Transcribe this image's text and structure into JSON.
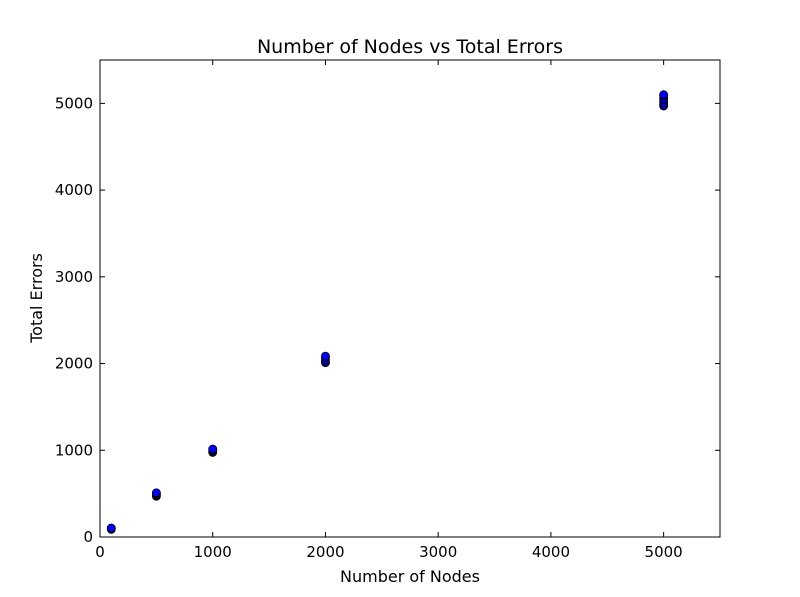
{
  "chart_data": {
    "type": "scatter",
    "title": "Number of Nodes vs Total Errors",
    "xlabel": "Number of Nodes",
    "ylabel": "Total Errors",
    "xlim": [
      0,
      5500
    ],
    "ylim": [
      0,
      5500
    ],
    "xticks": [
      0,
      1000,
      2000,
      3000,
      4000,
      5000
    ],
    "yticks": [
      0,
      1000,
      2000,
      3000,
      4000,
      5000
    ],
    "grid": false,
    "marker_color": "#0000ff",
    "marker_edge_color": "#000000",
    "points": [
      {
        "x": 100,
        "y": 88
      },
      {
        "x": 100,
        "y": 95
      },
      {
        "x": 100,
        "y": 100
      },
      {
        "x": 100,
        "y": 104
      },
      {
        "x": 500,
        "y": 470
      },
      {
        "x": 500,
        "y": 480
      },
      {
        "x": 500,
        "y": 490
      },
      {
        "x": 500,
        "y": 500
      },
      {
        "x": 500,
        "y": 510
      },
      {
        "x": 1000,
        "y": 975
      },
      {
        "x": 1000,
        "y": 985
      },
      {
        "x": 1000,
        "y": 995
      },
      {
        "x": 1000,
        "y": 1005
      },
      {
        "x": 1000,
        "y": 1015
      },
      {
        "x": 2000,
        "y": 2010
      },
      {
        "x": 2000,
        "y": 2020
      },
      {
        "x": 2000,
        "y": 2040
      },
      {
        "x": 2000,
        "y": 2070
      },
      {
        "x": 2000,
        "y": 2085
      },
      {
        "x": 5000,
        "y": 4970
      },
      {
        "x": 5000,
        "y": 4990
      },
      {
        "x": 5000,
        "y": 5010
      },
      {
        "x": 5000,
        "y": 5040
      },
      {
        "x": 5000,
        "y": 5060
      },
      {
        "x": 5000,
        "y": 5090
      },
      {
        "x": 5000,
        "y": 5100
      }
    ]
  }
}
